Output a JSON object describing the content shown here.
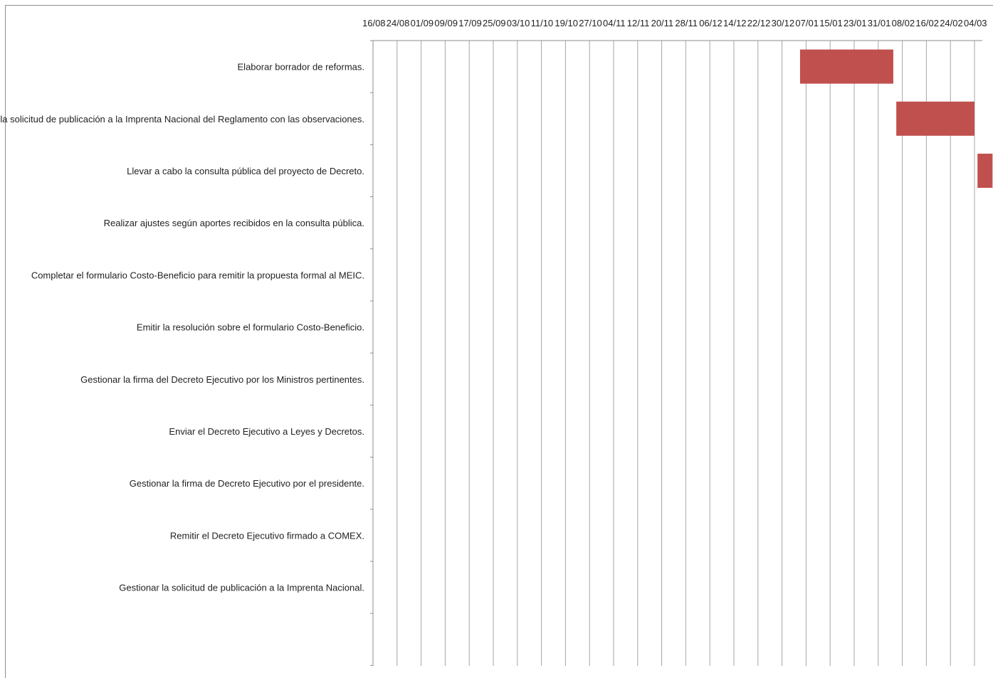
{
  "chart_data": {
    "type": "bar",
    "orientation": "horizontal-gantt",
    "title": "",
    "xlabel": "",
    "ylabel": "",
    "x_axis_position": "top",
    "grid": true,
    "legend": "none",
    "bar_color": "#C0504D",
    "x_tick_labels": [
      "16/08",
      "24/08",
      "01/09",
      "09/09",
      "17/09",
      "25/09",
      "03/10",
      "11/10",
      "19/10",
      "27/10",
      "04/11",
      "12/11",
      "20/11",
      "28/11",
      "06/12",
      "14/12",
      "22/12",
      "30/12",
      "07/01",
      "15/01",
      "23/01",
      "31/01",
      "08/02",
      "16/02",
      "24/02",
      "04/03"
    ],
    "tasks": [
      {
        "label": "Elaborar borrador de reformas.",
        "start": "05/01",
        "end": "05/02"
      },
      {
        "label": "Gestionar la solicitud de publicación a la Imprenta Nacional del Reglamento con las observaciones.",
        "start": "06/02",
        "end": "04/03"
      },
      {
        "label": "Llevar a cabo la consulta pública del proyecto de Decreto.",
        "start": "05/03",
        "end": "10/03"
      },
      {
        "label": "Realizar ajustes según aportes recibidos en la consulta pública.",
        "start": null,
        "end": null
      },
      {
        "label": "Completar el formulario Costo-Beneficio para remitir la propuesta formal al MEIC.",
        "start": null,
        "end": null
      },
      {
        "label": "Emitir la resolución sobre el formulario Costo-Beneficio.",
        "start": null,
        "end": null
      },
      {
        "label": "Gestionar la firma del Decreto Ejecutivo por los Ministros pertinentes.",
        "start": null,
        "end": null
      },
      {
        "label": "Enviar el Decreto Ejecutivo a Leyes y Decretos.",
        "start": null,
        "end": null
      },
      {
        "label": "Gestionar la firma de Decreto Ejecutivo por el presidente.",
        "start": null,
        "end": null
      },
      {
        "label": "Remitir el Decreto Ejecutivo firmado a COMEX.",
        "start": null,
        "end": null
      },
      {
        "label": "Gestionar la solicitud de publicación a la Imprenta Nacional.",
        "start": null,
        "end": null
      }
    ]
  }
}
